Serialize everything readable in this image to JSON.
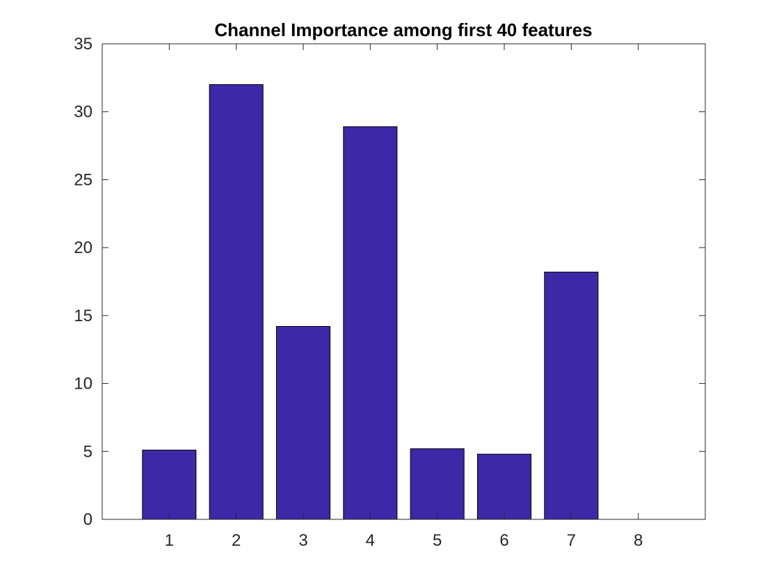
{
  "chart_data": {
    "type": "bar",
    "title": "Channel Importance among first 40 features",
    "xlabel": "",
    "ylabel": "",
    "categories": [
      "1",
      "2",
      "3",
      "4",
      "5",
      "6",
      "7",
      "8"
    ],
    "values": [
      5.1,
      32.0,
      14.2,
      28.9,
      5.2,
      4.8,
      18.2,
      0
    ],
    "xlim": [
      0,
      9
    ],
    "ylim": [
      0,
      35
    ],
    "yticks": [
      "0",
      "5",
      "10",
      "15",
      "20",
      "25",
      "30",
      "35"
    ],
    "grid": false,
    "legend": "none",
    "colors": {
      "bar_fill": "#3d28a8",
      "bar_edge": "#000000",
      "axis": "#262626"
    }
  }
}
